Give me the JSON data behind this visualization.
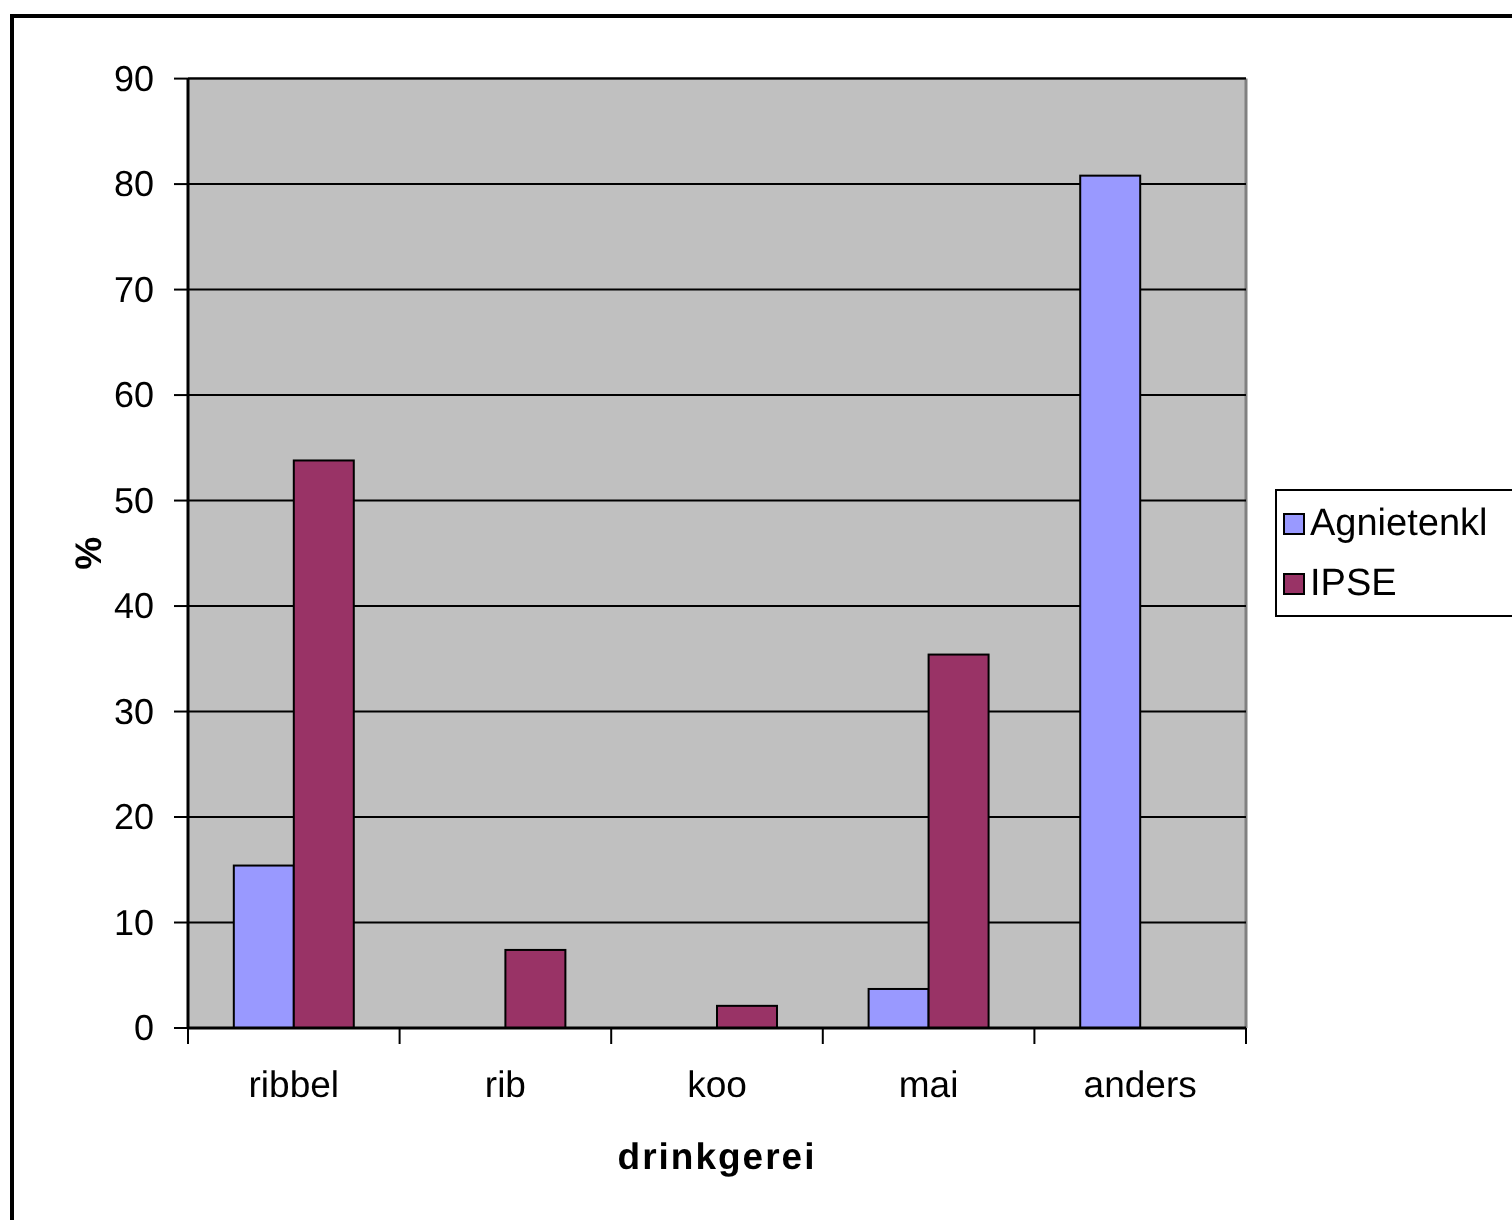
{
  "chart_data": {
    "type": "bar",
    "xlabel": "drinkgerei",
    "ylabel": "%",
    "categories": [
      "ribbel",
      "rib",
      "koo",
      "mai",
      "anders"
    ],
    "series": [
      {
        "name": "Agnietenkl",
        "color": "#9999ff",
        "values": [
          15.4,
          0,
          0,
          3.7,
          80.8
        ]
      },
      {
        "name": "IPSE",
        "color": "#993366",
        "values": [
          53.8,
          7.4,
          2.1,
          35.4,
          0
        ]
      }
    ],
    "ylim": [
      0,
      90
    ],
    "yticks": [
      0,
      10,
      20,
      30,
      40,
      50,
      60,
      70,
      80,
      90
    ],
    "grid": "y",
    "legend": "right"
  }
}
